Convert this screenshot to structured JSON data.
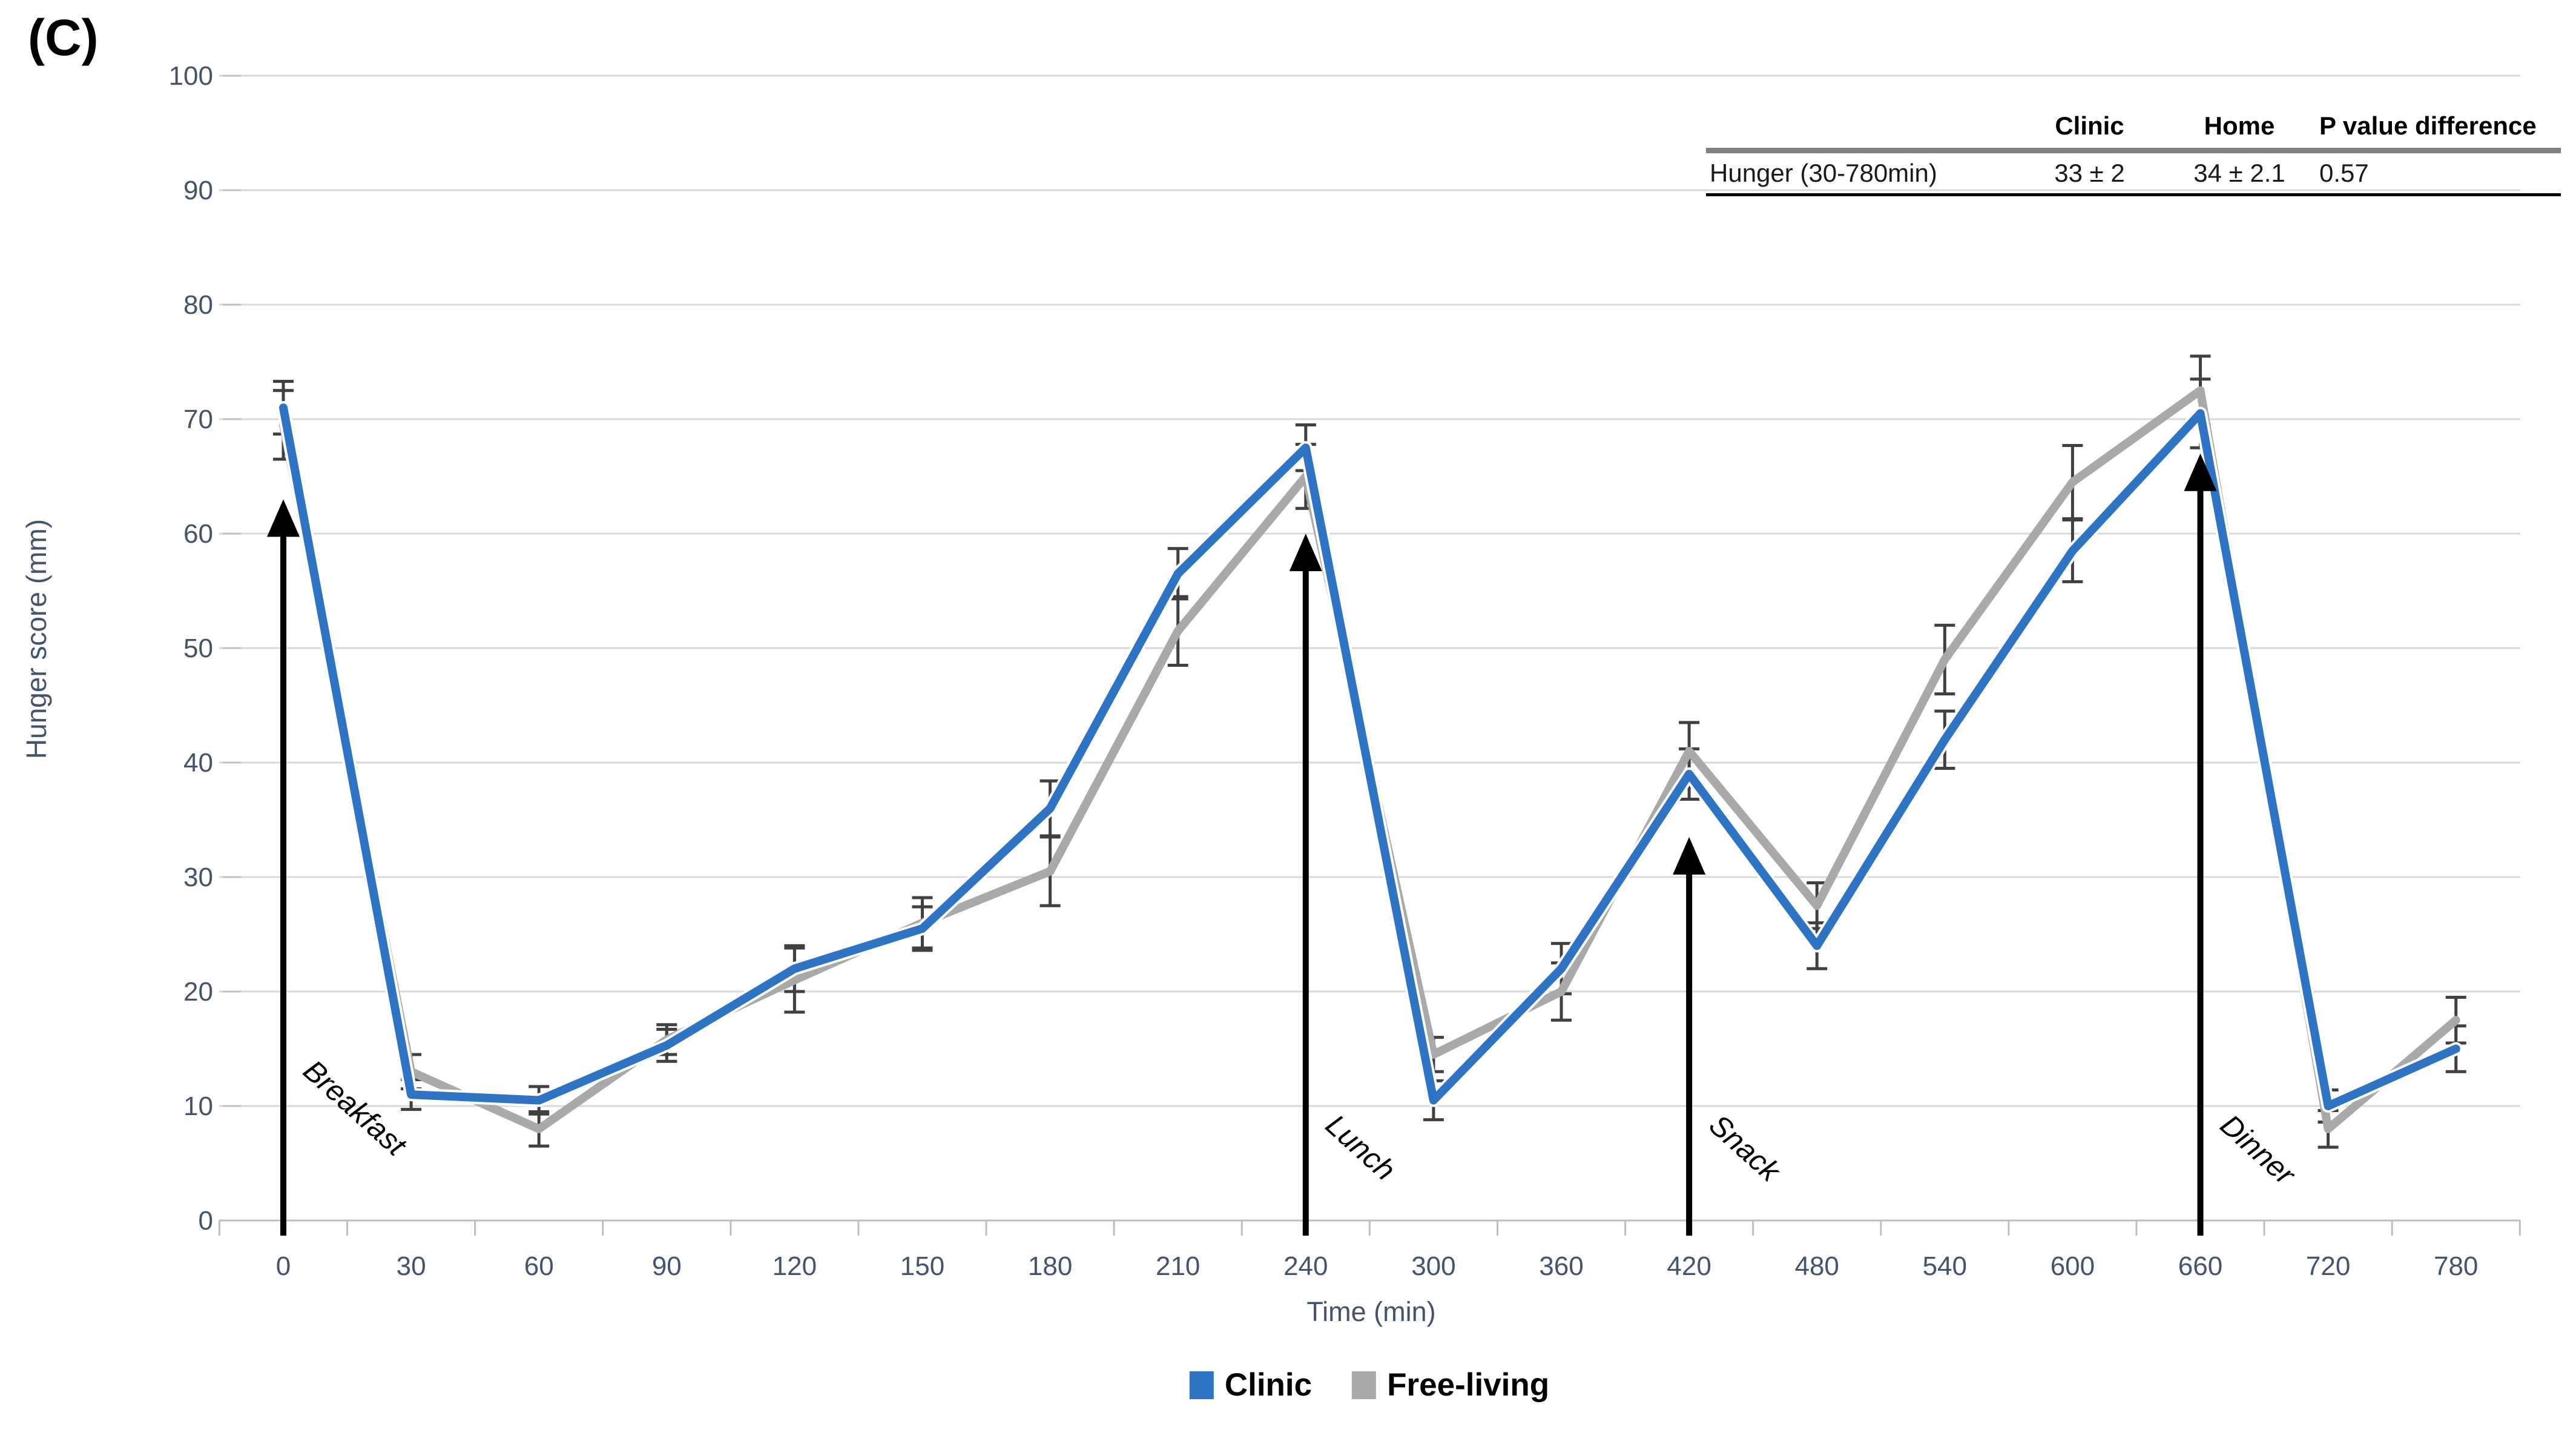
{
  "panel_label": "(C)",
  "colors": {
    "clinic_blue": "#2E74C4",
    "free_living_gray": "#A9A9A9",
    "gridline": "#D9D9D9",
    "axis_line": "#BFBFBF",
    "tick_text": "#44546A",
    "error_bar": "#404040",
    "annotation_text": "#000000",
    "table_header_rule": "#808080",
    "table_bottom_rule": "#000000"
  },
  "stats_table": {
    "col_headers": [
      "Clinic",
      "Home",
      "P value difference"
    ],
    "rows": [
      {
        "label": "Hunger (30-780min)",
        "values": [
          "33 ± 2",
          "34 ± 2.1",
          "0.57"
        ]
      }
    ]
  },
  "legend": [
    {
      "label": "Clinic",
      "color": "#2E74C4"
    },
    {
      "label": "Free-living",
      "color": "#A9A9A9"
    }
  ],
  "chart_data": {
    "type": "line",
    "title": "",
    "xlabel": "Time (min)",
    "ylabel": "Hunger score (mm)",
    "ylim": [
      0,
      100
    ],
    "ytick_step": 10,
    "yticks": [
      0,
      10,
      20,
      30,
      40,
      50,
      60,
      70,
      80,
      90,
      100
    ],
    "grid": true,
    "legend_position": "bottom",
    "x_axis_type": "categorical",
    "categories": [
      0,
      30,
      60,
      90,
      120,
      150,
      180,
      210,
      240,
      300,
      360,
      420,
      480,
      540,
      600,
      660,
      720,
      780
    ],
    "series": [
      {
        "name": "Clinic",
        "color": "#2E74C4",
        "values": [
          71,
          11,
          10.5,
          15.3,
          22,
          25.5,
          36,
          56.5,
          67.5,
          10.5,
          22,
          39,
          24,
          42,
          58.5,
          70.5,
          10,
          15
        ],
        "errors": [
          2.3,
          1.3,
          1.2,
          1.4,
          2.0,
          1.9,
          2.4,
          2.2,
          2.0,
          1.7,
          2.2,
          2.2,
          2.0,
          2.5,
          2.7,
          3.0,
          1.4,
          2.0
        ]
      },
      {
        "name": "Free-living",
        "color": "#A9A9A9",
        "values": [
          69.5,
          13,
          8,
          15.8,
          21,
          26,
          30.5,
          51.5,
          65,
          14.5,
          20,
          41,
          27.5,
          49,
          64.5,
          72.5,
          8,
          17.5
        ],
        "errors": [
          3.0,
          1.5,
          1.5,
          1.3,
          2.8,
          2.2,
          3.0,
          3.0,
          2.8,
          1.5,
          2.5,
          2.5,
          2.0,
          3.0,
          3.2,
          3.0,
          1.6,
          2.0
        ]
      }
    ],
    "annotations": [
      {
        "label": "Breakfast",
        "category": 0,
        "arrow_top": 63
      },
      {
        "label": "Lunch",
        "category": 240,
        "arrow_top": 60
      },
      {
        "label": "Snack",
        "category": 420,
        "arrow_top": 33.5
      },
      {
        "label": "Dinner",
        "category": 660,
        "arrow_top": 67
      }
    ]
  }
}
